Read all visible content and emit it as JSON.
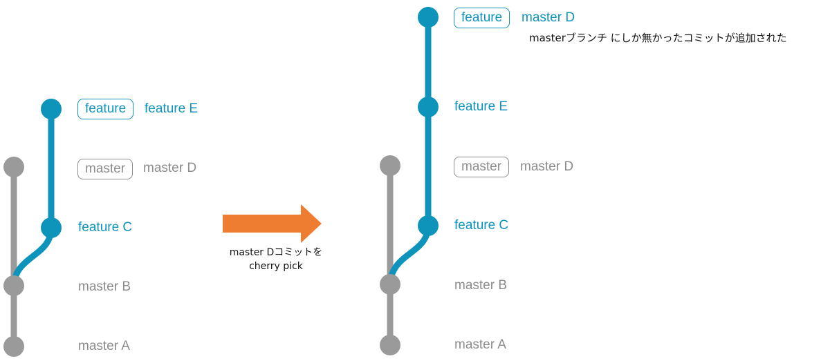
{
  "colors": {
    "feature": "#0e93bb",
    "master": "#9a9a9a",
    "arrow": "#ee7c31"
  },
  "before": {
    "tags": {
      "feature": "feature",
      "master": "master"
    },
    "commits": {
      "feature_e": "feature E",
      "master_d": "master D",
      "feature_c": "feature C",
      "master_b": "master B",
      "master_a": "master A"
    }
  },
  "transition": {
    "line1": "master Dコミットを",
    "line2": "cherry pick"
  },
  "after": {
    "tags": {
      "feature": "feature",
      "master": "master"
    },
    "commits": {
      "master_d_picked": "master D",
      "feature_e": "feature E",
      "master_d": "master D",
      "feature_c": "feature C",
      "master_b": "master B",
      "master_a": "master A"
    },
    "note": "masterブランチ にしか無かったコミットが追加された"
  }
}
